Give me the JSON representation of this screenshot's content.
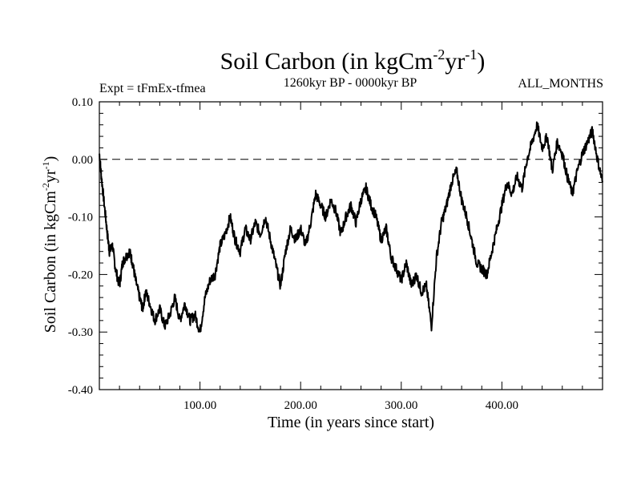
{
  "chart_data": {
    "type": "line",
    "title": "Soil Carbon (in kgCm",
    "title_sup1": "-2",
    "title_mid": "yr",
    "title_sup2": "-1",
    "title_end": ")",
    "subtitle_left": "Expt = tFmEx-tfmea",
    "subtitle_center": "1260kyr BP - 0000kyr BP",
    "subtitle_right": "ALL_MONTHS",
    "xlabel": "Time (in years since start)",
    "ylabel": "Soil Carbon (in kgCm",
    "ylabel_sup1": "-2",
    "ylabel_mid": "yr",
    "ylabel_sup2": "-1",
    "ylabel_end": ")",
    "xlim": [
      0,
      500
    ],
    "ylim": [
      -0.4,
      0.1
    ],
    "xticks": [
      100,
      200,
      300,
      400
    ],
    "xtick_labels": [
      "100.00",
      "200.00",
      "300.00",
      "400.00"
    ],
    "yticks": [
      0.1,
      0.0,
      -0.1,
      -0.2,
      -0.3,
      -0.4
    ],
    "ytick_labels": [
      "0.10",
      "0.00",
      "-0.10",
      "-0.20",
      "-0.30",
      "-0.40"
    ],
    "reference_line": {
      "y": 0.0,
      "style": "dashed"
    },
    "series": [
      {
        "name": "Soil Carbon",
        "color": "#000000",
        "x": [
          0,
          2,
          5,
          8,
          10,
          13,
          16,
          20,
          23,
          26,
          30,
          33,
          36,
          40,
          43,
          46,
          50,
          55,
          60,
          65,
          70,
          75,
          80,
          85,
          90,
          95,
          100,
          105,
          110,
          115,
          120,
          125,
          130,
          135,
          140,
          145,
          150,
          155,
          160,
          165,
          170,
          175,
          180,
          185,
          190,
          195,
          200,
          205,
          210,
          215,
          220,
          225,
          230,
          235,
          240,
          245,
          250,
          255,
          260,
          265,
          270,
          275,
          280,
          285,
          290,
          295,
          300,
          305,
          310,
          315,
          320,
          325,
          330,
          335,
          340,
          345,
          350,
          355,
          360,
          365,
          370,
          375,
          380,
          385,
          390,
          395,
          400,
          405,
          410,
          415,
          420,
          425,
          430,
          435,
          440,
          445,
          450,
          455,
          460,
          465,
          470,
          475,
          480,
          485,
          490,
          495,
          500
        ],
        "values": [
          0.01,
          -0.03,
          -0.08,
          -0.13,
          -0.16,
          -0.15,
          -0.19,
          -0.22,
          -0.18,
          -0.17,
          -0.16,
          -0.18,
          -0.21,
          -0.24,
          -0.26,
          -0.23,
          -0.25,
          -0.28,
          -0.26,
          -0.29,
          -0.27,
          -0.24,
          -0.28,
          -0.25,
          -0.28,
          -0.27,
          -0.3,
          -0.24,
          -0.21,
          -0.2,
          -0.15,
          -0.13,
          -0.1,
          -0.14,
          -0.16,
          -0.12,
          -0.14,
          -0.11,
          -0.13,
          -0.1,
          -0.14,
          -0.18,
          -0.22,
          -0.16,
          -0.12,
          -0.14,
          -0.12,
          -0.15,
          -0.11,
          -0.06,
          -0.08,
          -0.1,
          -0.07,
          -0.09,
          -0.13,
          -0.1,
          -0.08,
          -0.11,
          -0.07,
          -0.05,
          -0.08,
          -0.1,
          -0.14,
          -0.12,
          -0.17,
          -0.19,
          -0.21,
          -0.18,
          -0.22,
          -0.2,
          -0.23,
          -0.22,
          -0.29,
          -0.17,
          -0.11,
          -0.08,
          -0.04,
          -0.02,
          -0.07,
          -0.1,
          -0.14,
          -0.18,
          -0.19,
          -0.2,
          -0.16,
          -0.12,
          -0.08,
          -0.04,
          -0.06,
          -0.03,
          -0.05,
          0.0,
          0.03,
          0.06,
          0.02,
          0.04,
          -0.02,
          0.03,
          0.01,
          -0.03,
          -0.06,
          -0.02,
          0.01,
          0.03,
          0.05,
          0.0,
          -0.04
        ]
      }
    ]
  }
}
